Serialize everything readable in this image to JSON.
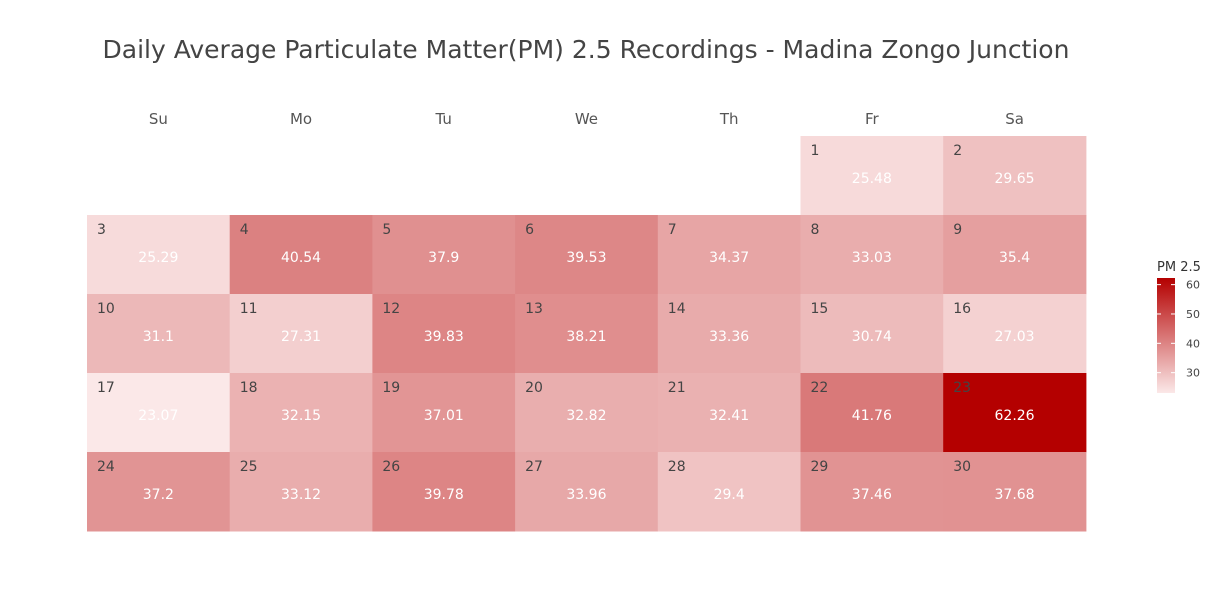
{
  "chart_data": {
    "type": "heatmap",
    "title": "Daily Average Particulate Matter(PM) 2.5 Recordings - Madina Zongo Junction",
    "weekdays": [
      "Su",
      "Mo",
      "Tu",
      "We",
      "Th",
      "Fr",
      "Sa"
    ],
    "days": [
      {
        "day": 1,
        "week": 1,
        "weekday": "Fr",
        "value": 25.48
      },
      {
        "day": 2,
        "week": 1,
        "weekday": "Sa",
        "value": 29.65
      },
      {
        "day": 3,
        "week": 2,
        "weekday": "Su",
        "value": 25.29
      },
      {
        "day": 4,
        "week": 2,
        "weekday": "Mo",
        "value": 40.54
      },
      {
        "day": 5,
        "week": 2,
        "weekday": "Tu",
        "value": 37.9
      },
      {
        "day": 6,
        "week": 2,
        "weekday": "We",
        "value": 39.53
      },
      {
        "day": 7,
        "week": 2,
        "weekday": "Th",
        "value": 34.37
      },
      {
        "day": 8,
        "week": 2,
        "weekday": "Fr",
        "value": 33.03
      },
      {
        "day": 9,
        "week": 2,
        "weekday": "Sa",
        "value": 35.4
      },
      {
        "day": 10,
        "week": 3,
        "weekday": "Su",
        "value": 31.1
      },
      {
        "day": 11,
        "week": 3,
        "weekday": "Mo",
        "value": 27.31
      },
      {
        "day": 12,
        "week": 3,
        "weekday": "Tu",
        "value": 39.83
      },
      {
        "day": 13,
        "week": 3,
        "weekday": "We",
        "value": 38.21
      },
      {
        "day": 14,
        "week": 3,
        "weekday": "Th",
        "value": 33.36
      },
      {
        "day": 15,
        "week": 3,
        "weekday": "Fr",
        "value": 30.74
      },
      {
        "day": 16,
        "week": 3,
        "weekday": "Sa",
        "value": 27.03
      },
      {
        "day": 17,
        "week": 4,
        "weekday": "Su",
        "value": 23.07
      },
      {
        "day": 18,
        "week": 4,
        "weekday": "Mo",
        "value": 32.15
      },
      {
        "day": 19,
        "week": 4,
        "weekday": "Tu",
        "value": 37.01
      },
      {
        "day": 20,
        "week": 4,
        "weekday": "We",
        "value": 32.82
      },
      {
        "day": 21,
        "week": 4,
        "weekday": "Th",
        "value": 32.41
      },
      {
        "day": 22,
        "week": 4,
        "weekday": "Fr",
        "value": 41.76
      },
      {
        "day": 23,
        "week": 4,
        "weekday": "Sa",
        "value": 62.26
      },
      {
        "day": 24,
        "week": 5,
        "weekday": "Su",
        "value": 37.2
      },
      {
        "day": 25,
        "week": 5,
        "weekday": "Mo",
        "value": 33.12
      },
      {
        "day": 26,
        "week": 5,
        "weekday": "Tu",
        "value": 39.78
      },
      {
        "day": 27,
        "week": 5,
        "weekday": "We",
        "value": 33.96
      },
      {
        "day": 28,
        "week": 5,
        "weekday": "Th",
        "value": 29.4
      },
      {
        "day": 29,
        "week": 5,
        "weekday": "Fr",
        "value": 37.46
      },
      {
        "day": 30,
        "week": 5,
        "weekday": "Sa",
        "value": 37.68
      }
    ],
    "legend": {
      "title": "PM 2.5",
      "ticks": [
        30,
        40,
        50,
        60
      ],
      "range": [
        23.07,
        62.26
      ],
      "low_color": "#fbe8e8",
      "high_color": "#b40000",
      "placement": "right"
    },
    "grid": false
  }
}
